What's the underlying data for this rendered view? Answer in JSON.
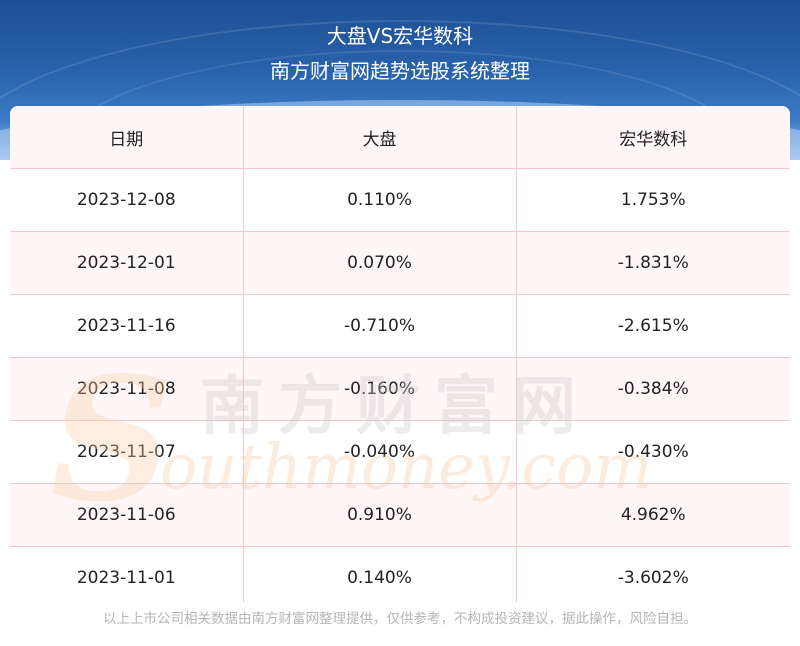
{
  "header": {
    "title_line1": "大盘VS宏华数科",
    "title_line2": "南方财富网趋势选股系统整理"
  },
  "table": {
    "columns": [
      "日期",
      "大盘",
      "宏华数科"
    ],
    "rows": [
      [
        "2023-12-08",
        "0.110%",
        "1.753%"
      ],
      [
        "2023-12-01",
        "0.070%",
        "-1.831%"
      ],
      [
        "2023-11-16",
        "-0.710%",
        "-2.615%"
      ],
      [
        "2023-11-08",
        "-0.160%",
        "-0.384%"
      ],
      [
        "2023-11-07",
        "-0.040%",
        "-0.430%"
      ],
      [
        "2023-11-06",
        "0.910%",
        "4.962%"
      ],
      [
        "2023-11-01",
        "0.140%",
        "-3.602%"
      ]
    ]
  },
  "watermark": {
    "chinese": "南方财富网",
    "english": "outhmoney.com",
    "logo_letter": "S"
  },
  "footer": {
    "disclaimer": "以上上市公司相关数据由南方财富网整理提供，仅供参考，不构成投资建议，据此操作，风险自担。"
  },
  "colors": {
    "header_blue": "#1c4f93",
    "row_tint": "#fff5f7",
    "grid_line": "#efc9cd"
  }
}
